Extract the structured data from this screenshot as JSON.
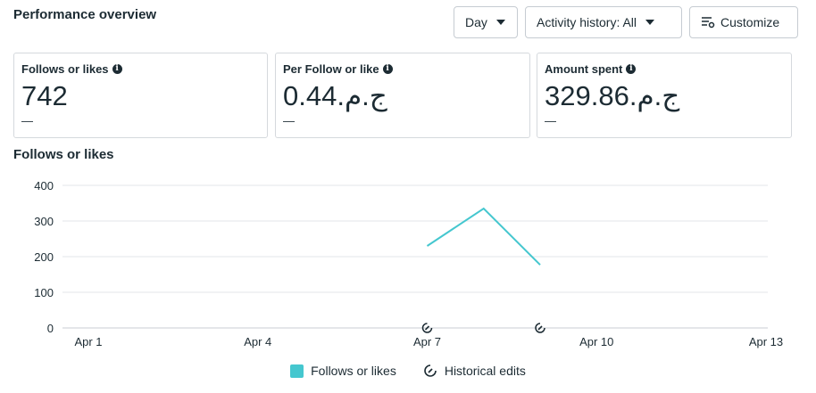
{
  "header": {
    "title": "Performance overview",
    "day_label": "Day",
    "activity_label": "Activity history: All",
    "customize_label": "Customize"
  },
  "cards": [
    {
      "label": "Follows or likes",
      "value": "742",
      "dash": "—"
    },
    {
      "label": "Per Follow or like",
      "value": "ج.م.0.44",
      "dash": "—"
    },
    {
      "label": "Amount spent",
      "value": "ج.م.329.86",
      "dash": "—"
    }
  ],
  "chart": {
    "title": "Follows or likes",
    "legend": {
      "series_label": "Follows or likes",
      "edits_label": "Historical edits"
    }
  },
  "chart_data": {
    "type": "line",
    "title": "Follows or likes",
    "x_ticks": [
      "Apr 1",
      "Apr 4",
      "Apr 7",
      "Apr 10",
      "Apr 13"
    ],
    "y_ticks": [
      0,
      100,
      200,
      300,
      400
    ],
    "ylim": [
      0,
      400
    ],
    "xlim": [
      "Apr 1",
      "Apr 13"
    ],
    "series": [
      {
        "name": "Follows or likes",
        "color": "#45c7cf",
        "points": [
          {
            "x": "Apr 7",
            "y": 230
          },
          {
            "x": "Apr 8",
            "y": 335
          },
          {
            "x": "Apr 9",
            "y": 177
          }
        ]
      }
    ],
    "historical_edits": [
      "Apr 7",
      "Apr 9"
    ],
    "grid": true
  }
}
